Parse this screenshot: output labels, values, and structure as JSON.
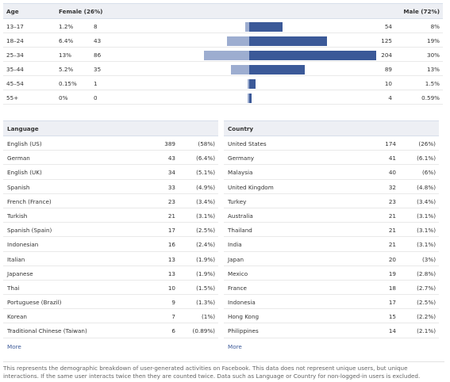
{
  "age": {
    "header": {
      "age": "Age",
      "female": "Female (26%)",
      "male": "Male (72%)"
    },
    "rows": [
      {
        "age": "13–17",
        "female_pct": "1.2%",
        "female_count": "8",
        "male_count": "54",
        "male_pct": "8%",
        "female_value": 8,
        "male_value": 54
      },
      {
        "age": "18–24",
        "female_pct": "6.4%",
        "female_count": "43",
        "male_count": "125",
        "male_pct": "19%",
        "female_value": 43,
        "male_value": 125
      },
      {
        "age": "25–34",
        "female_pct": "13%",
        "female_count": "86",
        "male_count": "204",
        "male_pct": "30%",
        "female_value": 86,
        "male_value": 204
      },
      {
        "age": "35–44",
        "female_pct": "5.2%",
        "female_count": "35",
        "male_count": "89",
        "male_pct": "13%",
        "female_value": 35,
        "male_value": 89
      },
      {
        "age": "45–54",
        "female_pct": "0.15%",
        "female_count": "1",
        "male_count": "10",
        "male_pct": "1.5%",
        "female_value": 1,
        "male_value": 10
      },
      {
        "age": "55+",
        "female_pct": "0%",
        "female_count": "0",
        "male_count": "4",
        "male_pct": "0.59%",
        "female_value": 0,
        "male_value": 4
      }
    ],
    "colors": {
      "female": "#9dadd0",
      "male": "#3b5998"
    }
  },
  "language": {
    "title": "Language",
    "rows": [
      {
        "name": "English (US)",
        "count": "389",
        "pct": "(58%)"
      },
      {
        "name": "German",
        "count": "43",
        "pct": "(6.4%)"
      },
      {
        "name": "English (UK)",
        "count": "34",
        "pct": "(5.1%)"
      },
      {
        "name": "Spanish",
        "count": "33",
        "pct": "(4.9%)"
      },
      {
        "name": "French (France)",
        "count": "23",
        "pct": "(3.4%)"
      },
      {
        "name": "Turkish",
        "count": "21",
        "pct": "(3.1%)"
      },
      {
        "name": "Spanish (Spain)",
        "count": "17",
        "pct": "(2.5%)"
      },
      {
        "name": "Indonesian",
        "count": "16",
        "pct": "(2.4%)"
      },
      {
        "name": "Italian",
        "count": "13",
        "pct": "(1.9%)"
      },
      {
        "name": "Japanese",
        "count": "13",
        "pct": "(1.9%)"
      },
      {
        "name": "Thai",
        "count": "10",
        "pct": "(1.5%)"
      },
      {
        "name": "Portuguese (Brazil)",
        "count": "9",
        "pct": "(1.3%)"
      },
      {
        "name": "Korean",
        "count": "7",
        "pct": "(1%)"
      },
      {
        "name": "Traditional Chinese (Taiwan)",
        "count": "6",
        "pct": "(0.89%)"
      }
    ],
    "more": "More"
  },
  "country": {
    "title": "Country",
    "rows": [
      {
        "name": "United States",
        "count": "174",
        "pct": "(26%)"
      },
      {
        "name": "Germany",
        "count": "41",
        "pct": "(6.1%)"
      },
      {
        "name": "Malaysia",
        "count": "40",
        "pct": "(6%)"
      },
      {
        "name": "United Kingdom",
        "count": "32",
        "pct": "(4.8%)"
      },
      {
        "name": "Turkey",
        "count": "23",
        "pct": "(3.4%)"
      },
      {
        "name": "Australia",
        "count": "21",
        "pct": "(3.1%)"
      },
      {
        "name": "Thailand",
        "count": "21",
        "pct": "(3.1%)"
      },
      {
        "name": "India",
        "count": "21",
        "pct": "(3.1%)"
      },
      {
        "name": "Japan",
        "count": "20",
        "pct": "(3%)"
      },
      {
        "name": "Mexico",
        "count": "19",
        "pct": "(2.8%)"
      },
      {
        "name": "France",
        "count": "18",
        "pct": "(2.7%)"
      },
      {
        "name": "Indonesia",
        "count": "17",
        "pct": "(2.5%)"
      },
      {
        "name": "Hong Kong",
        "count": "15",
        "pct": "(2.2%)"
      },
      {
        "name": "Philippines",
        "count": "14",
        "pct": "(2.1%)"
      }
    ],
    "more": "More"
  },
  "footnote": "This represents the demographic breakdown of user-generated activities on Facebook. This data does not represent unique users, but unique interactions. If the same user interacts twice then they are counted twice. Data such as Language or Country for non-logged-in users is excluded."
}
